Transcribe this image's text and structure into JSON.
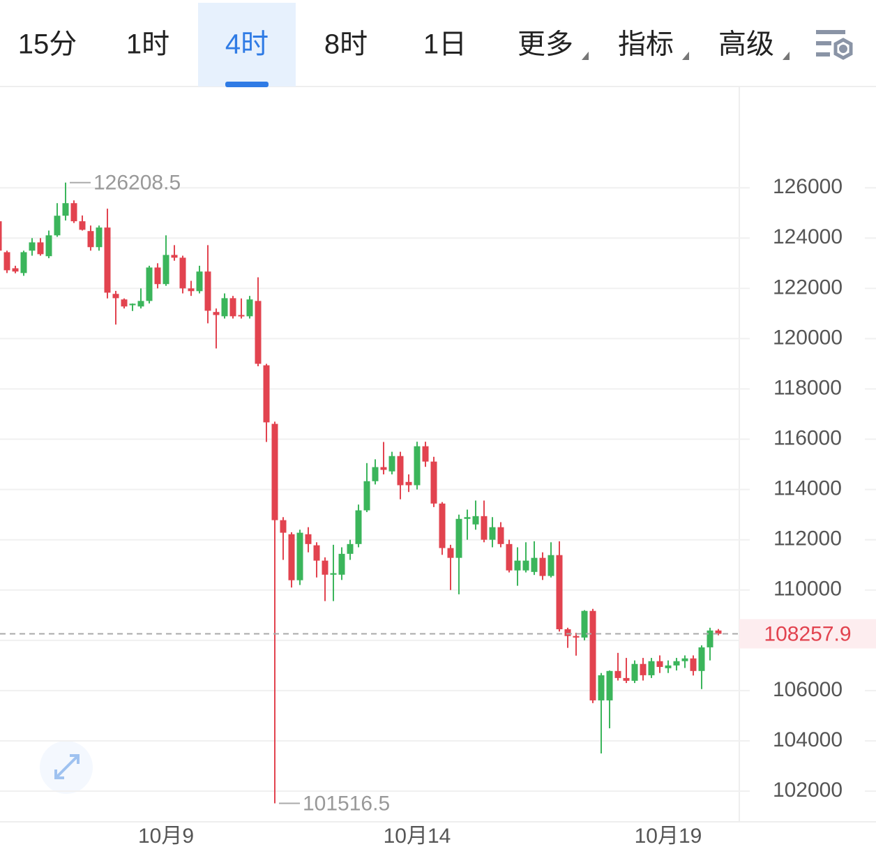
{
  "tabs": [
    "15分",
    "1时",
    "4时",
    "8时",
    "1日",
    "更多",
    "指标",
    "高级"
  ],
  "active_tab": 2,
  "dropdown_tabs": [
    5,
    6,
    7
  ],
  "chart_data": {
    "type": "candlestick",
    "categories": [
      null,
      null,
      null,
      null,
      null,
      null,
      null,
      null,
      null,
      null,
      null,
      null,
      null,
      null,
      null,
      null,
      null,
      null,
      null,
      null,
      "10月9",
      null,
      null,
      null,
      null,
      null,
      null,
      null,
      null,
      null,
      null,
      null,
      null,
      null,
      null,
      null,
      null,
      null,
      null,
      null,
      null,
      null,
      null,
      null,
      null,
      null,
      null,
      null,
      null,
      null,
      "10月14",
      null,
      null,
      null,
      null,
      null,
      null,
      null,
      null,
      null,
      null,
      null,
      null,
      null,
      null,
      null,
      null,
      null,
      null,
      null,
      null,
      null,
      null,
      null,
      null,
      null,
      null,
      null,
      null,
      null,
      "10月19",
      null,
      null,
      null,
      null,
      null,
      null
    ],
    "open": [
      124670,
      123440,
      122800,
      122610,
      123500,
      123830,
      123280,
      124110,
      124890,
      125390,
      124670,
      124280,
      123640,
      124420,
      121780,
      121560,
      121330,
      121280,
      121500,
      122830,
      122170,
      123330,
      123220,
      122000,
      121890,
      122670,
      121060,
      120890,
      121610,
      120940,
      120890,
      121500,
      118940,
      116610,
      112780,
      112220,
      110390,
      112220,
      111780,
      111170,
      110610,
      110610,
      111440,
      111830,
      113170,
      114330,
      114890,
      114720,
      115330,
      114300,
      114170,
      115720,
      115110,
      113440,
      111670,
      111280,
      112830,
      112610,
      112940,
      112000,
      112500,
      111830,
      110780,
      110780,
      110720,
      111280,
      110560,
      111390,
      108440,
      108170,
      108110,
      109170,
      105610,
      105610,
      106780,
      106500,
      106390,
      107060,
      106610,
      107170,
      106890,
      107000,
      107170,
      107280,
      106780,
      107720,
      108390
    ],
    "high": [
      124900,
      123500,
      122900,
      123500,
      124000,
      124000,
      124300,
      125390,
      126208.5,
      125500,
      124900,
      124500,
      124500,
      125170,
      121900,
      121600,
      121400,
      122000,
      122900,
      123000,
      124110,
      123720,
      123300,
      122300,
      122900,
      123720,
      121200,
      121800,
      121700,
      121600,
      121700,
      122440,
      119000,
      116700,
      112900,
      112300,
      112400,
      112500,
      111900,
      111300,
      111800,
      111700,
      112000,
      113400,
      115050,
      115200,
      115890,
      115500,
      115500,
      114600,
      115900,
      115900,
      115300,
      113500,
      111800,
      113000,
      113200,
      113560,
      113560,
      112900,
      112700,
      112000,
      111700,
      111900,
      111940,
      111500,
      111900,
      111940,
      108500,
      108300,
      109200,
      109250,
      106700,
      106800,
      107500,
      107300,
      107200,
      107300,
      107300,
      107400,
      107200,
      107300,
      107400,
      107400,
      107800,
      108500,
      108450
    ],
    "low": [
      123300,
      122610,
      122600,
      122500,
      123300,
      123300,
      123200,
      124050,
      124700,
      124600,
      124300,
      123500,
      123500,
      121600,
      120560,
      121200,
      121100,
      121200,
      121400,
      122000,
      122100,
      123100,
      121800,
      121700,
      121800,
      120610,
      119610,
      120800,
      120800,
      120800,
      120800,
      118900,
      115890,
      101516.5,
      111200,
      110100,
      110200,
      111500,
      110500,
      109560,
      109560,
      110400,
      111200,
      111700,
      113100,
      114200,
      114600,
      114600,
      113610,
      113900,
      114000,
      114900,
      113300,
      111400,
      110000,
      109830,
      112000,
      112400,
      111900,
      111700,
      111700,
      110700,
      110170,
      110700,
      110600,
      110400,
      110500,
      108350,
      107700,
      107390,
      108000,
      105500,
      103500,
      104500,
      106400,
      106300,
      106300,
      106400,
      106500,
      106700,
      106700,
      106800,
      106900,
      106600,
      106060,
      107200,
      108200
    ],
    "close": [
      123500,
      122720,
      122670,
      123440,
      123830,
      123360,
      124110,
      124890,
      125390,
      124670,
      124330,
      123640,
      124420,
      121830,
      121610,
      121280,
      121390,
      121500,
      122830,
      122170,
      123330,
      123220,
      122000,
      121890,
      122670,
      121110,
      120940,
      121610,
      120890,
      120890,
      121560,
      119000,
      116670,
      112780,
      112280,
      110390,
      112280,
      111830,
      111170,
      110610,
      110670,
      111440,
      111830,
      113170,
      114330,
      114890,
      114780,
      115330,
      114170,
      114170,
      115720,
      115110,
      113440,
      111670,
      111280,
      112830,
      112900,
      112940,
      112000,
      112500,
      111830,
      110780,
      111170,
      111170,
      111280,
      110560,
      111390,
      108440,
      108170,
      108110,
      109170,
      105610,
      106610,
      106780,
      106500,
      106390,
      107060,
      106610,
      107170,
      106940,
      107000,
      107170,
      107280,
      106780,
      107720,
      108390,
      108257.9
    ],
    "up_color": "#3bb55b",
    "down_color": "#e2434f",
    "ylim": [
      100780,
      130030
    ],
    "yticks": [
      102000,
      104000,
      106000,
      108000,
      110000,
      112000,
      114000,
      116000,
      118000,
      120000,
      122000,
      124000,
      126000
    ],
    "grid": true
  }
}
